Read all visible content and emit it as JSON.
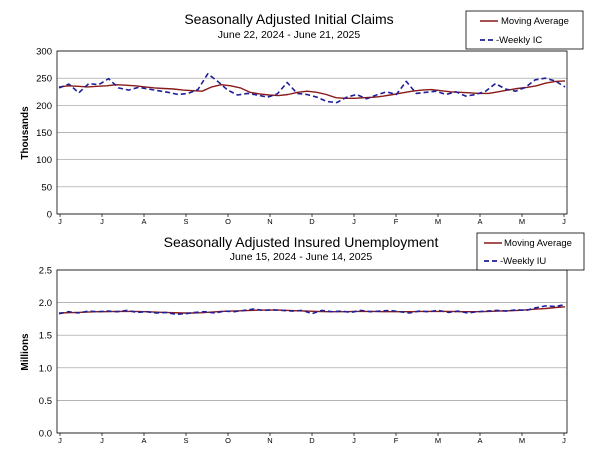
{
  "chart_data": [
    {
      "type": "line",
      "title": "Seasonally Adjusted Initial Claims",
      "subtitle": "June 22, 2024 - June 21, 2025",
      "ylabel": "Thousands",
      "xlabel": "",
      "ylim": [
        0,
        300
      ],
      "yticks": [
        "0",
        "50",
        "100",
        "150",
        "200",
        "250",
        "300"
      ],
      "x_tick_labels": [
        "J",
        "J",
        "A",
        "S",
        "O",
        "N",
        "D",
        "J",
        "F",
        "M",
        "A",
        "M",
        "J"
      ],
      "grid": true,
      "legend_position": "top-right",
      "series": [
        {
          "name": "Moving Average",
          "color": "#8B1A1A",
          "style": "solid",
          "values": [
            234,
            236,
            235,
            234,
            235,
            236,
            238,
            237,
            236,
            234,
            232,
            231,
            230,
            228,
            227,
            226,
            234,
            238,
            236,
            232,
            224,
            221,
            219,
            218,
            220,
            224,
            226,
            224,
            220,
            214,
            213,
            213,
            214,
            215,
            217,
            220,
            223,
            226,
            228,
            229,
            227,
            225,
            224,
            223,
            222,
            222,
            225,
            228,
            231,
            233,
            236,
            241,
            244,
            245
          ]
        },
        {
          "name": "-Weekly IC",
          "color": "#1F1F9A",
          "style": "dashed",
          "values": [
            232,
            239,
            223,
            240,
            238,
            249,
            232,
            228,
            233,
            230,
            227,
            224,
            220,
            222,
            229,
            258,
            244,
            228,
            219,
            222,
            219,
            215,
            221,
            242,
            222,
            220,
            215,
            207,
            205,
            215,
            220,
            212,
            219,
            225,
            220,
            244,
            222,
            224,
            226,
            220,
            225,
            217,
            220,
            226,
            240,
            230,
            226,
            233,
            247,
            250,
            245,
            234
          ]
        }
      ]
    },
    {
      "type": "line",
      "title": "Seasonally Adjusted Insured Unemployment",
      "subtitle": "June 15, 2024 - June 14, 2025",
      "ylabel": "Millions",
      "xlabel": "",
      "ylim": [
        0,
        2.5
      ],
      "yticks": [
        "0.0",
        "0.5",
        "1.0",
        "1.5",
        "2.0",
        "2.5"
      ],
      "x_tick_labels": [
        "J",
        "J",
        "A",
        "S",
        "O",
        "N",
        "D",
        "J",
        "F",
        "M",
        "A",
        "M",
        "J"
      ],
      "grid": true,
      "legend_position": "top-right",
      "series": [
        {
          "name": "Moving Average",
          "color": "#8B1A1A",
          "style": "solid",
          "values": [
            1.84,
            1.845,
            1.85,
            1.855,
            1.86,
            1.86,
            1.865,
            1.865,
            1.865,
            1.86,
            1.855,
            1.85,
            1.845,
            1.84,
            1.84,
            1.845,
            1.855,
            1.865,
            1.87,
            1.875,
            1.88,
            1.885,
            1.885,
            1.885,
            1.88,
            1.875,
            1.87,
            1.865,
            1.86,
            1.86,
            1.86,
            1.865,
            1.865,
            1.865,
            1.86,
            1.86,
            1.86,
            1.86,
            1.865,
            1.865,
            1.865,
            1.865,
            1.86,
            1.86,
            1.86,
            1.865,
            1.87,
            1.875,
            1.88,
            1.89,
            1.9,
            1.91,
            1.925,
            1.935
          ]
        },
        {
          "name": "-Weekly IU",
          "color": "#1F1F9A",
          "style": "dashed",
          "values": [
            1.83,
            1.86,
            1.84,
            1.87,
            1.86,
            1.87,
            1.86,
            1.88,
            1.85,
            1.86,
            1.84,
            1.85,
            1.82,
            1.83,
            1.85,
            1.86,
            1.84,
            1.87,
            1.86,
            1.88,
            1.9,
            1.88,
            1.89,
            1.88,
            1.87,
            1.88,
            1.83,
            1.88,
            1.86,
            1.87,
            1.85,
            1.88,
            1.86,
            1.87,
            1.88,
            1.86,
            1.84,
            1.87,
            1.86,
            1.88,
            1.85,
            1.87,
            1.84,
            1.86,
            1.87,
            1.88,
            1.87,
            1.89,
            1.88,
            1.92,
            1.95,
            1.94,
            1.97
          ]
        }
      ]
    }
  ]
}
